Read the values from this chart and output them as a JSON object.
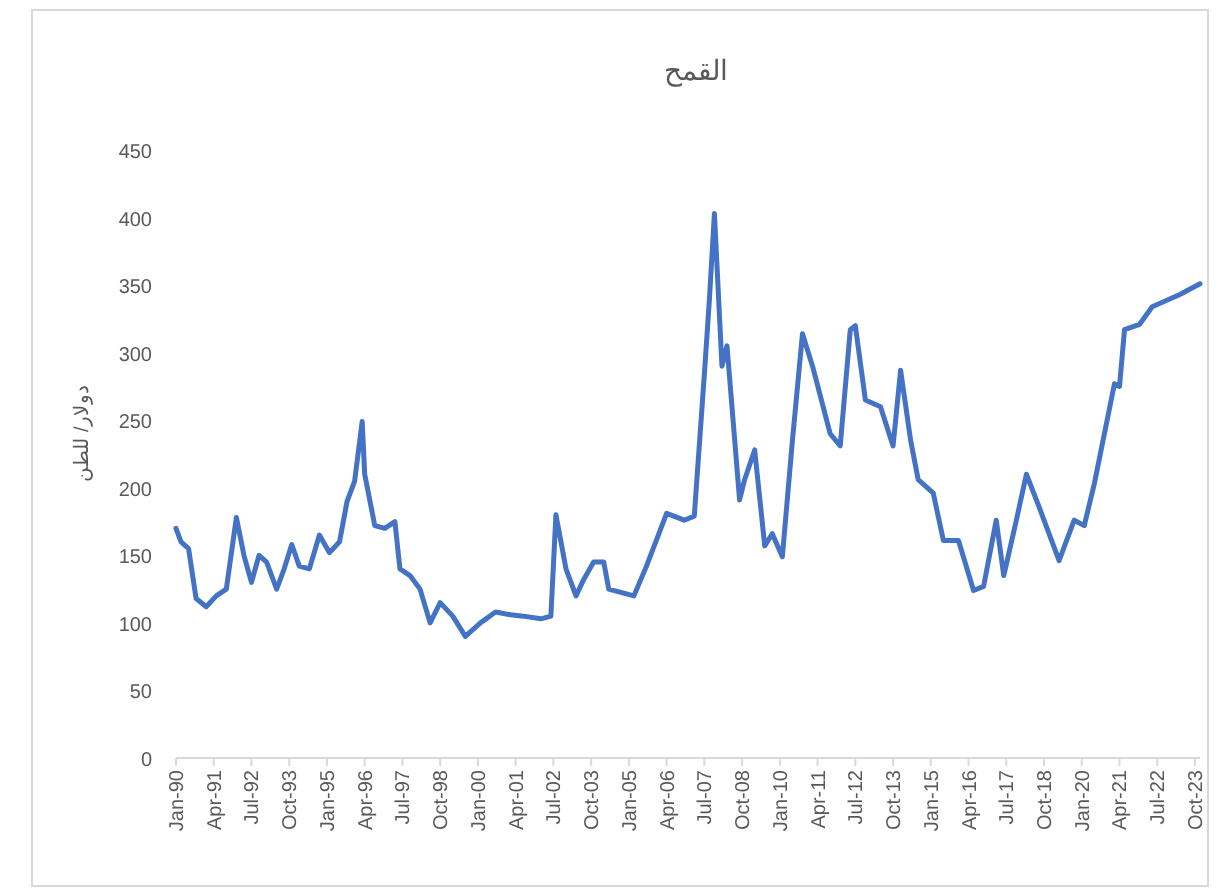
{
  "chart_data": {
    "type": "line",
    "title": "القمح",
    "ylabel": "دولار/ للطن",
    "x": [
      "1990-01",
      "1990-03",
      "1990-06",
      "1990-09",
      "1991-01",
      "1991-05",
      "1991-09",
      "1992-01",
      "1992-04",
      "1992-07",
      "1992-10",
      "1993-01",
      "1993-05",
      "1993-08",
      "1993-11",
      "1994-02",
      "1994-06",
      "1994-10",
      "1995-02",
      "1995-06",
      "1995-09",
      "1995-12",
      "1996-03",
      "1996-04",
      "1996-08",
      "1996-12",
      "1997-04",
      "1997-06",
      "1997-10",
      "1998-02",
      "1998-06",
      "1998-10",
      "1999-03",
      "1999-08",
      "2000-02",
      "2000-08",
      "2001-02",
      "2001-07",
      "2002-02",
      "2002-06",
      "2002-08",
      "2002-12",
      "2003-04",
      "2003-07",
      "2003-11",
      "2004-03",
      "2004-05",
      "2005-03",
      "2005-08",
      "2006-04",
      "2006-11",
      "2007-03",
      "2007-07",
      "2007-09",
      "2007-11",
      "2008-02",
      "2008-04",
      "2008-09",
      "2008-11",
      "2009-03",
      "2009-07",
      "2009-10",
      "2010-02",
      "2010-06",
      "2010-10",
      "2011-02",
      "2011-09",
      "2012-01",
      "2012-05",
      "2012-07",
      "2012-11",
      "2013-05",
      "2013-10",
      "2014-01",
      "2014-05",
      "2014-08",
      "2015-02",
      "2015-06",
      "2015-12",
      "2016-06",
      "2016-10",
      "2017-03",
      "2017-06",
      "2017-11",
      "2018-03",
      "2018-08",
      "2019-04",
      "2019-10",
      "2020-02",
      "2020-06",
      "2020-10",
      "2021-02",
      "2021-04",
      "2021-06",
      "2021-12",
      "2022-05",
      "2023-04",
      "2023-12"
    ],
    "series": [
      {
        "color": "#4472c4",
        "values": [
          170,
          160,
          155,
          118,
          112,
          120,
          125,
          178,
          150,
          130,
          150,
          145,
          125,
          140,
          158,
          142,
          140,
          165,
          152,
          160,
          190,
          205,
          249,
          210,
          172,
          170,
          175,
          140,
          135,
          125,
          100,
          115,
          105,
          90,
          100,
          108,
          106,
          105,
          103,
          105,
          180,
          140,
          120,
          132,
          145,
          145,
          125,
          120,
          142,
          181,
          176,
          179,
          284,
          339,
          403,
          290,
          305,
          191,
          206,
          228,
          157,
          166,
          149,
          235,
          314,
          290,
          240,
          231,
          317,
          320,
          265,
          260,
          231,
          287,
          235,
          206,
          196,
          161,
          161,
          124,
          127,
          176,
          135,
          176,
          210,
          186,
          146,
          176,
          172,
          203,
          240,
          277,
          275,
          317,
          321,
          334,
          343,
          351
        ]
      }
    ],
    "xlim": [
      "1990-01",
      "2023-12"
    ],
    "xticks": [
      {
        "value": "1990-01",
        "label": "Jan-90"
      },
      {
        "value": "1991-04",
        "label": "Apr-91"
      },
      {
        "value": "1992-07",
        "label": "Jul-92"
      },
      {
        "value": "1993-10",
        "label": "Oct-93"
      },
      {
        "value": "1995-01",
        "label": "Jan-95"
      },
      {
        "value": "1996-04",
        "label": "Apr-96"
      },
      {
        "value": "1997-07",
        "label": "Jul-97"
      },
      {
        "value": "1998-10",
        "label": "Oct-98"
      },
      {
        "value": "2000-01",
        "label": "Jan-00"
      },
      {
        "value": "2001-04",
        "label": "Apr-01"
      },
      {
        "value": "2002-07",
        "label": "Jul-02"
      },
      {
        "value": "2003-10",
        "label": "Oct-03"
      },
      {
        "value": "2005-01",
        "label": "Jan-05"
      },
      {
        "value": "2006-04",
        "label": "Apr-06"
      },
      {
        "value": "2007-07",
        "label": "Jul-07"
      },
      {
        "value": "2008-10",
        "label": "Oct-08"
      },
      {
        "value": "2010-01",
        "label": "Jan-10"
      },
      {
        "value": "2011-04",
        "label": "Apr-11"
      },
      {
        "value": "2012-07",
        "label": "Jul-12"
      },
      {
        "value": "2013-10",
        "label": "Oct-13"
      },
      {
        "value": "2015-01",
        "label": "Jan-15"
      },
      {
        "value": "2016-04",
        "label": "Apr-16"
      },
      {
        "value": "2017-07",
        "label": "Jul-17"
      },
      {
        "value": "2018-10",
        "label": "Oct-18"
      },
      {
        "value": "2020-01",
        "label": "Jan-20"
      },
      {
        "value": "2021-04",
        "label": "Apr-21"
      },
      {
        "value": "2022-07",
        "label": "Jul-22"
      },
      {
        "value": "2023-10",
        "label": "Oct-23"
      }
    ],
    "ylim": [
      0,
      450
    ],
    "yticks": [
      0,
      50,
      100,
      150,
      200,
      250,
      300,
      350,
      400,
      450
    ]
  }
}
